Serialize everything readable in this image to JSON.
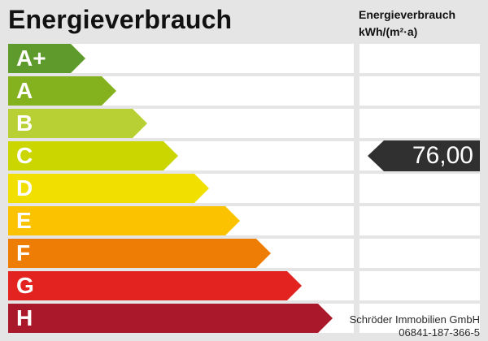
{
  "header": {
    "title": "Energieverbrauch",
    "column_line1": "Energieverbrauch",
    "column_line2": "kWh/(m²·a)"
  },
  "classes": [
    {
      "label": "A+",
      "color": "#5f9a2c"
    },
    {
      "label": "A",
      "color": "#84b21f"
    },
    {
      "label": "B",
      "color": "#b9d034"
    },
    {
      "label": "C",
      "color": "#cbd500"
    },
    {
      "label": "D",
      "color": "#f1df00"
    },
    {
      "label": "E",
      "color": "#fbc200"
    },
    {
      "label": "F",
      "color": "#ee7d06"
    },
    {
      "label": "G",
      "color": "#e2231f"
    },
    {
      "label": "H",
      "color": "#a9182b"
    }
  ],
  "marker": {
    "value": "76,00",
    "class": "C"
  },
  "footer": {
    "company": "Schröder Immobilien GmbH",
    "phone": "06841-187-366-5"
  }
}
